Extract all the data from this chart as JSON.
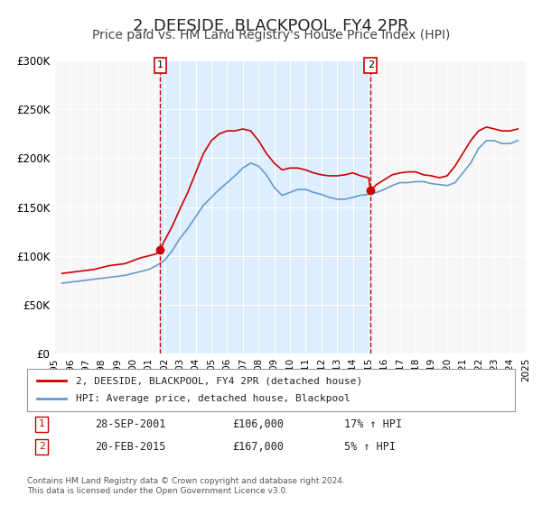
{
  "title": "2, DEESIDE, BLACKPOOL, FY4 2PR",
  "subtitle": "Price paid vs. HM Land Registry's House Price Index (HPI)",
  "title_fontsize": 13,
  "subtitle_fontsize": 10,
  "background_color": "#ffffff",
  "plot_bg_color": "#f7f7f7",
  "shade_color": "#ddeeff",
  "red_line_color": "#cc0000",
  "blue_line_color": "#6699cc",
  "grid_color": "#ffffff",
  "ylabel_color": "#333333",
  "ylim": [
    0,
    300000
  ],
  "yticks": [
    0,
    50000,
    100000,
    150000,
    200000,
    250000,
    300000
  ],
  "ytick_labels": [
    "£0",
    "£50K",
    "£100K",
    "£150K",
    "£200K",
    "£250K",
    "£300K"
  ],
  "xmin_year": 1995,
  "xmax_year": 2025,
  "xtick_years": [
    1995,
    1996,
    1997,
    1998,
    1999,
    2000,
    2001,
    2002,
    2003,
    2004,
    2005,
    2006,
    2007,
    2008,
    2009,
    2010,
    2011,
    2012,
    2013,
    2014,
    2015,
    2016,
    2017,
    2018,
    2019,
    2020,
    2021,
    2022,
    2023,
    2024,
    2025
  ],
  "sale1_x": 2001.75,
  "sale1_y": 106000,
  "sale1_label": "1",
  "sale2_x": 2015.13,
  "sale2_y": 167000,
  "sale2_label": "2",
  "vline1_x": 2001.75,
  "vline2_x": 2015.13,
  "legend_entries": [
    {
      "label": "2, DEESIDE, BLACKPOOL, FY4 2PR (detached house)",
      "color": "#cc0000"
    },
    {
      "label": "HPI: Average price, detached house, Blackpool",
      "color": "#6699cc"
    }
  ],
  "table_rows": [
    {
      "num": "1",
      "date": "28-SEP-2001",
      "price": "£106,000",
      "hpi": "17% ↑ HPI"
    },
    {
      "num": "2",
      "date": "20-FEB-2015",
      "price": "£167,000",
      "hpi": "5% ↑ HPI"
    }
  ],
  "footnote": "Contains HM Land Registry data © Crown copyright and database right 2024.\nThis data is licensed under the Open Government Licence v3.0.",
  "hpi_data": {
    "years": [
      1995.5,
      1996.0,
      1996.5,
      1997.0,
      1997.5,
      1998.0,
      1998.5,
      1999.0,
      1999.5,
      2000.0,
      2000.5,
      2001.0,
      2001.5,
      2002.0,
      2002.5,
      2003.0,
      2003.5,
      2004.0,
      2004.5,
      2005.0,
      2005.5,
      2006.0,
      2006.5,
      2007.0,
      2007.5,
      2008.0,
      2008.5,
      2009.0,
      2009.5,
      2010.0,
      2010.5,
      2011.0,
      2011.5,
      2012.0,
      2012.5,
      2013.0,
      2013.5,
      2014.0,
      2014.5,
      2015.0,
      2015.5,
      2016.0,
      2016.5,
      2017.0,
      2017.5,
      2018.0,
      2018.5,
      2019.0,
      2019.5,
      2020.0,
      2020.5,
      2021.0,
      2021.5,
      2022.0,
      2022.5,
      2023.0,
      2023.5,
      2024.0,
      2024.5
    ],
    "values": [
      72000,
      73000,
      74000,
      75000,
      76000,
      77000,
      78000,
      79000,
      80000,
      82000,
      84000,
      86000,
      90000,
      95000,
      105000,
      118000,
      128000,
      140000,
      152000,
      160000,
      168000,
      175000,
      182000,
      190000,
      195000,
      192000,
      183000,
      170000,
      162000,
      165000,
      168000,
      168000,
      165000,
      163000,
      160000,
      158000,
      158000,
      160000,
      162000,
      163000,
      165000,
      168000,
      172000,
      175000,
      175000,
      176000,
      176000,
      174000,
      173000,
      172000,
      175000,
      185000,
      195000,
      210000,
      218000,
      218000,
      215000,
      215000,
      218000
    ]
  },
  "price_data": {
    "years": [
      1995.5,
      1996.0,
      1996.5,
      1997.0,
      1997.5,
      1998.0,
      1998.5,
      1999.0,
      1999.5,
      2000.0,
      2000.5,
      2001.0,
      2001.5,
      2001.75,
      2002.0,
      2002.5,
      2003.0,
      2003.5,
      2004.0,
      2004.5,
      2005.0,
      2005.5,
      2006.0,
      2006.5,
      2007.0,
      2007.5,
      2008.0,
      2008.5,
      2009.0,
      2009.5,
      2010.0,
      2010.5,
      2011.0,
      2011.5,
      2012.0,
      2012.5,
      2013.0,
      2013.5,
      2014.0,
      2014.5,
      2015.0,
      2015.13,
      2015.5,
      2016.0,
      2016.5,
      2017.0,
      2017.5,
      2018.0,
      2018.5,
      2019.0,
      2019.5,
      2020.0,
      2020.5,
      2021.0,
      2021.5,
      2022.0,
      2022.5,
      2023.0,
      2023.5,
      2024.0,
      2024.5
    ],
    "values": [
      82000,
      83000,
      84000,
      85000,
      86000,
      88000,
      90000,
      91000,
      92000,
      95000,
      98000,
      100000,
      102000,
      106000,
      115000,
      130000,
      148000,
      165000,
      185000,
      205000,
      218000,
      225000,
      228000,
      228000,
      230000,
      228000,
      218000,
      205000,
      195000,
      188000,
      190000,
      190000,
      188000,
      185000,
      183000,
      182000,
      182000,
      183000,
      185000,
      182000,
      180000,
      167000,
      173000,
      178000,
      183000,
      185000,
      186000,
      186000,
      183000,
      182000,
      180000,
      182000,
      192000,
      205000,
      218000,
      228000,
      232000,
      230000,
      228000,
      228000,
      230000
    ]
  }
}
